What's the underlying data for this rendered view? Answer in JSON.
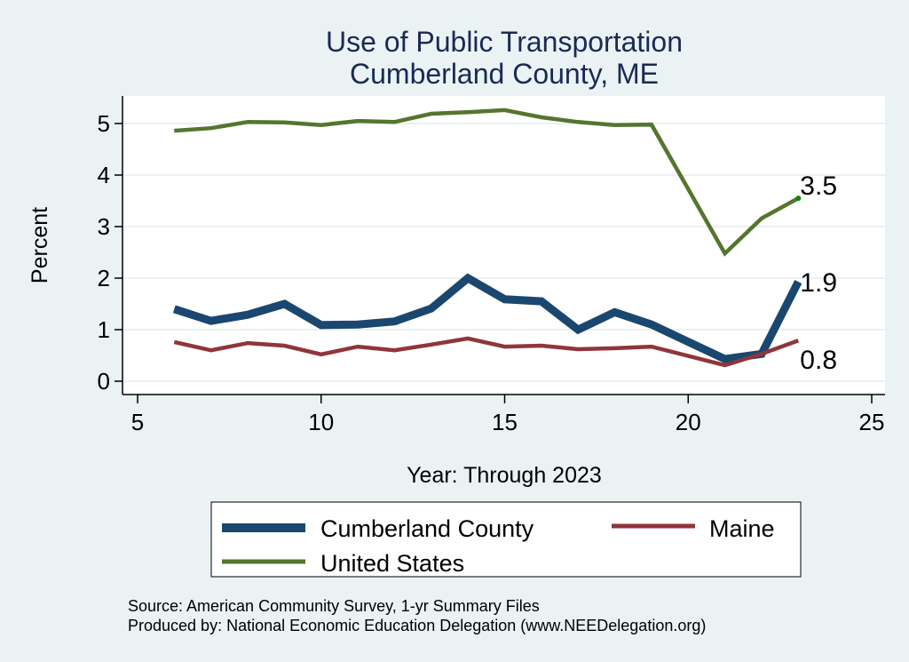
{
  "chart_data": {
    "type": "line",
    "title": [
      "Use of Public Transportation",
      "Cumberland County, ME"
    ],
    "xlabel": "Year: Through 2023",
    "ylabel": "Percent",
    "xlim": [
      4.5,
      25.3
    ],
    "ylim": [
      -0.25,
      5.5
    ],
    "xticks": [
      5,
      10,
      15,
      20,
      25
    ],
    "yticks": [
      0,
      1,
      2,
      3,
      4,
      5
    ],
    "grid": "horizontal",
    "legend_position": "bottom",
    "x": [
      6,
      7,
      8,
      9,
      10,
      11,
      12,
      13,
      14,
      15,
      16,
      17,
      18,
      19,
      21,
      22,
      23
    ],
    "series": [
      {
        "name": "Cumberland County",
        "color": "#1A476F",
        "values": [
          1.4,
          1.17,
          1.29,
          1.5,
          1.09,
          1.1,
          1.16,
          1.41,
          2.0,
          1.59,
          1.55,
          1.0,
          1.34,
          1.1,
          0.43,
          0.53,
          1.93
        ],
        "end_label": "1.9"
      },
      {
        "name": "Maine",
        "color": "#90353B",
        "values": [
          0.76,
          0.6,
          0.74,
          0.69,
          0.52,
          0.67,
          0.6,
          0.71,
          0.83,
          0.67,
          0.69,
          0.62,
          0.64,
          0.67,
          0.31,
          0.53,
          0.79
        ],
        "end_label": "0.8"
      },
      {
        "name": "United States",
        "color": "#55752F",
        "values": [
          4.86,
          4.91,
          5.03,
          5.02,
          4.97,
          5.05,
          5.03,
          5.19,
          5.22,
          5.26,
          5.12,
          5.03,
          4.97,
          4.98,
          2.48,
          3.16,
          3.55
        ],
        "end_label": "3.5"
      }
    ],
    "notes": [
      "Source: American Community Survey, 1-yr Summary Files",
      "Produced by: National Economic Education Delegation (www.NEEDelegation.org)"
    ]
  },
  "colors": {
    "background": "#EAF2F3",
    "plot_background": "#FFFFFF",
    "gridline": "#EAF2F3",
    "title": "#1a2a55",
    "us_end_marker": "#0B8A0B"
  }
}
